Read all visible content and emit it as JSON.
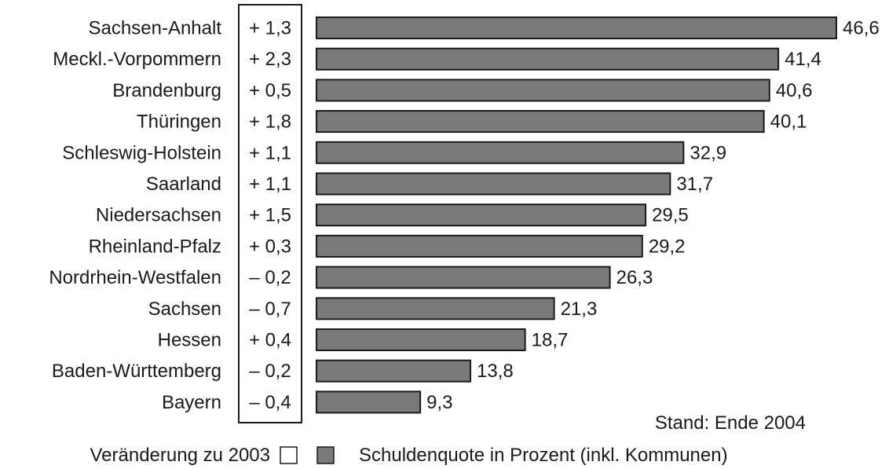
{
  "chart_data": {
    "type": "bar",
    "orientation": "horizontal",
    "categories": [
      "Sachsen-Anhalt",
      "Meckl.-Vorpommern",
      "Brandenburg",
      "Thüringen",
      "Schleswig-Holstein",
      "Saarland",
      "Niedersachsen",
      "Rheinland-Pfalz",
      "Nordrhein-Westfalen",
      "Sachsen",
      "Hessen",
      "Baden-Württemberg",
      "Bayern"
    ],
    "series": [
      {
        "name": "Schuldenquote in Prozent (inkl. Kommunen)",
        "values": [
          46.6,
          41.4,
          40.6,
          40.1,
          32.9,
          31.7,
          29.5,
          29.2,
          26.3,
          21.3,
          18.7,
          13.8,
          9.3
        ],
        "labels": [
          "46,6",
          "41,4",
          "40,6",
          "40,1",
          "32,9",
          "31,7",
          "29,5",
          "29,2",
          "26,3",
          "21,3",
          "18,7",
          "13,8",
          "9,3"
        ],
        "color": "#7a7a7a"
      },
      {
        "name": "Veränderung zu 2003",
        "values": [
          1.3,
          2.3,
          0.5,
          1.8,
          1.1,
          1.1,
          1.5,
          0.3,
          -0.2,
          -0.7,
          0.4,
          -0.2,
          -0.4
        ],
        "labels": [
          "+ 1,3",
          "+ 2,3",
          "+ 0,5",
          "+ 1,8",
          "+ 1,1",
          "+ 1,1",
          "+ 1,5",
          "+ 0,3",
          "– 0,2",
          "– 0,7",
          "+ 0,4",
          "– 0,2",
          "– 0,4"
        ],
        "color": "#ffffff"
      }
    ],
    "xlim": [
      0,
      46.6
    ],
    "grid": false,
    "legend_position": "bottom",
    "note": "Stand: Ende 2004"
  }
}
